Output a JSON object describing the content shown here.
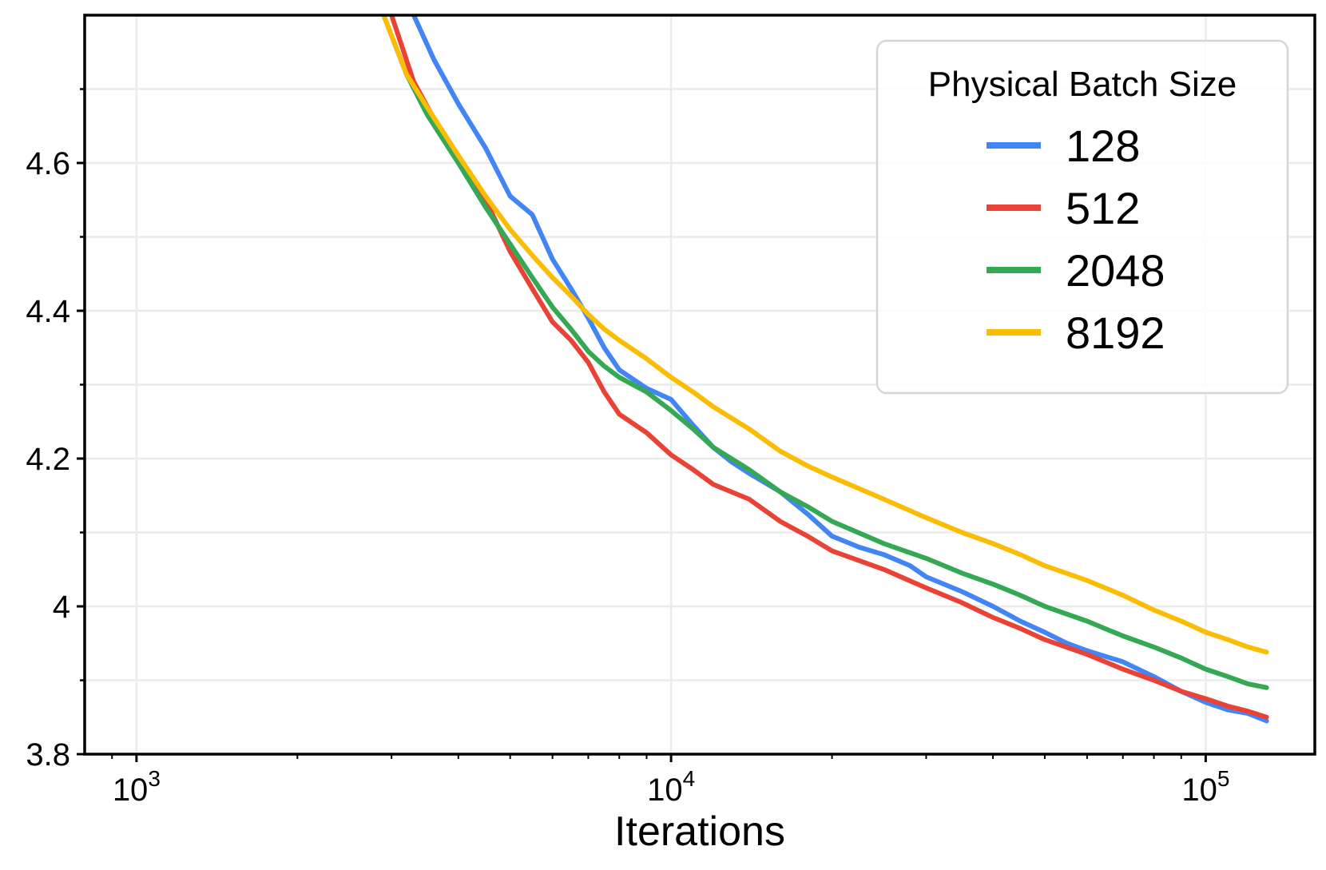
{
  "chart_data": {
    "type": "line",
    "title": "",
    "xlabel": "Iterations",
    "ylabel": "",
    "x_scale": "log",
    "xlim": [
      800,
      160000
    ],
    "ylim": [
      3.8,
      4.8
    ],
    "grid": true,
    "x_ticks": [
      {
        "value": 1000,
        "base": "10",
        "exp": "3"
      },
      {
        "value": 10000,
        "base": "10",
        "exp": "4"
      },
      {
        "value": 100000,
        "base": "10",
        "exp": "5"
      }
    ],
    "y_ticks": [
      {
        "value": 3.8,
        "label": "3.8"
      },
      {
        "value": 4.0,
        "label": "4"
      },
      {
        "value": 4.2,
        "label": "4.2"
      },
      {
        "value": 4.4,
        "label": "4.4"
      },
      {
        "value": 4.6,
        "label": "4.6"
      }
    ],
    "y_minor_ticks": [
      3.9,
      4.1,
      4.3,
      4.5,
      4.7
    ],
    "legend": {
      "title": "Physical Batch Size",
      "position": "top-right"
    },
    "series": [
      {
        "name": "128",
        "color": "#4285F4",
        "x": [
          3300,
          3600,
          4000,
          4500,
          5000,
          5500,
          6000,
          6500,
          7000,
          7500,
          8000,
          9000,
          10000,
          11000,
          12000,
          13000,
          14000,
          16000,
          18000,
          20000,
          22500,
          25000,
          28000,
          30000,
          35000,
          40000,
          45000,
          50000,
          55000,
          60000,
          70000,
          80000,
          90000,
          100000,
          110000,
          120000,
          130000
        ],
        "y": [
          4.8,
          4.74,
          4.68,
          4.62,
          4.555,
          4.53,
          4.47,
          4.43,
          4.39,
          4.35,
          4.32,
          4.295,
          4.28,
          4.245,
          4.215,
          4.195,
          4.18,
          4.155,
          4.125,
          4.095,
          4.08,
          4.07,
          4.055,
          4.04,
          4.02,
          4.0,
          3.98,
          3.965,
          3.95,
          3.94,
          3.925,
          3.905,
          3.885,
          3.87,
          3.86,
          3.855,
          3.845
        ]
      },
      {
        "name": "512",
        "color": "#EA4335",
        "x": [
          3000,
          3300,
          3600,
          4000,
          4500,
          5000,
          5500,
          6000,
          6500,
          7000,
          7500,
          8000,
          9000,
          10000,
          11000,
          12000,
          14000,
          16000,
          18000,
          20000,
          25000,
          30000,
          35000,
          40000,
          45000,
          50000,
          60000,
          70000,
          80000,
          90000,
          100000,
          110000,
          120000,
          130000
        ],
        "y": [
          4.8,
          4.71,
          4.66,
          4.61,
          4.55,
          4.48,
          4.43,
          4.385,
          4.36,
          4.33,
          4.29,
          4.26,
          4.235,
          4.205,
          4.185,
          4.165,
          4.145,
          4.115,
          4.095,
          4.075,
          4.05,
          4.025,
          4.005,
          3.985,
          3.97,
          3.955,
          3.935,
          3.915,
          3.9,
          3.885,
          3.875,
          3.865,
          3.858,
          3.85
        ]
      },
      {
        "name": "2048",
        "color": "#34A853",
        "x": [
          2900,
          3200,
          3500,
          4000,
          4500,
          5000,
          5500,
          6000,
          6500,
          7000,
          7500,
          8000,
          9000,
          10000,
          11000,
          12000,
          14000,
          16000,
          18000,
          20000,
          25000,
          30000,
          35000,
          40000,
          45000,
          50000,
          60000,
          70000,
          80000,
          90000,
          100000,
          110000,
          120000,
          130000
        ],
        "y": [
          4.8,
          4.72,
          4.665,
          4.6,
          4.54,
          4.49,
          4.445,
          4.405,
          4.375,
          4.345,
          4.325,
          4.31,
          4.29,
          4.265,
          4.24,
          4.215,
          4.185,
          4.155,
          4.135,
          4.115,
          4.085,
          4.065,
          4.045,
          4.03,
          4.015,
          4.0,
          3.98,
          3.96,
          3.945,
          3.93,
          3.915,
          3.905,
          3.895,
          3.89
        ]
      },
      {
        "name": "8192",
        "color": "#FBBC04",
        "x": [
          2900,
          3200,
          3500,
          4000,
          4500,
          5000,
          5500,
          6000,
          6500,
          7000,
          7500,
          8000,
          9000,
          10000,
          11000,
          12000,
          14000,
          16000,
          18000,
          20000,
          25000,
          30000,
          35000,
          40000,
          45000,
          50000,
          60000,
          70000,
          80000,
          90000,
          100000,
          110000,
          120000,
          130000
        ],
        "y": [
          4.8,
          4.72,
          4.675,
          4.61,
          4.555,
          4.51,
          4.475,
          4.445,
          4.42,
          4.395,
          4.375,
          4.36,
          4.335,
          4.31,
          4.29,
          4.27,
          4.24,
          4.21,
          4.19,
          4.175,
          4.145,
          4.12,
          4.1,
          4.085,
          4.07,
          4.055,
          4.035,
          4.015,
          3.995,
          3.98,
          3.965,
          3.955,
          3.945,
          3.938
        ]
      }
    ]
  }
}
